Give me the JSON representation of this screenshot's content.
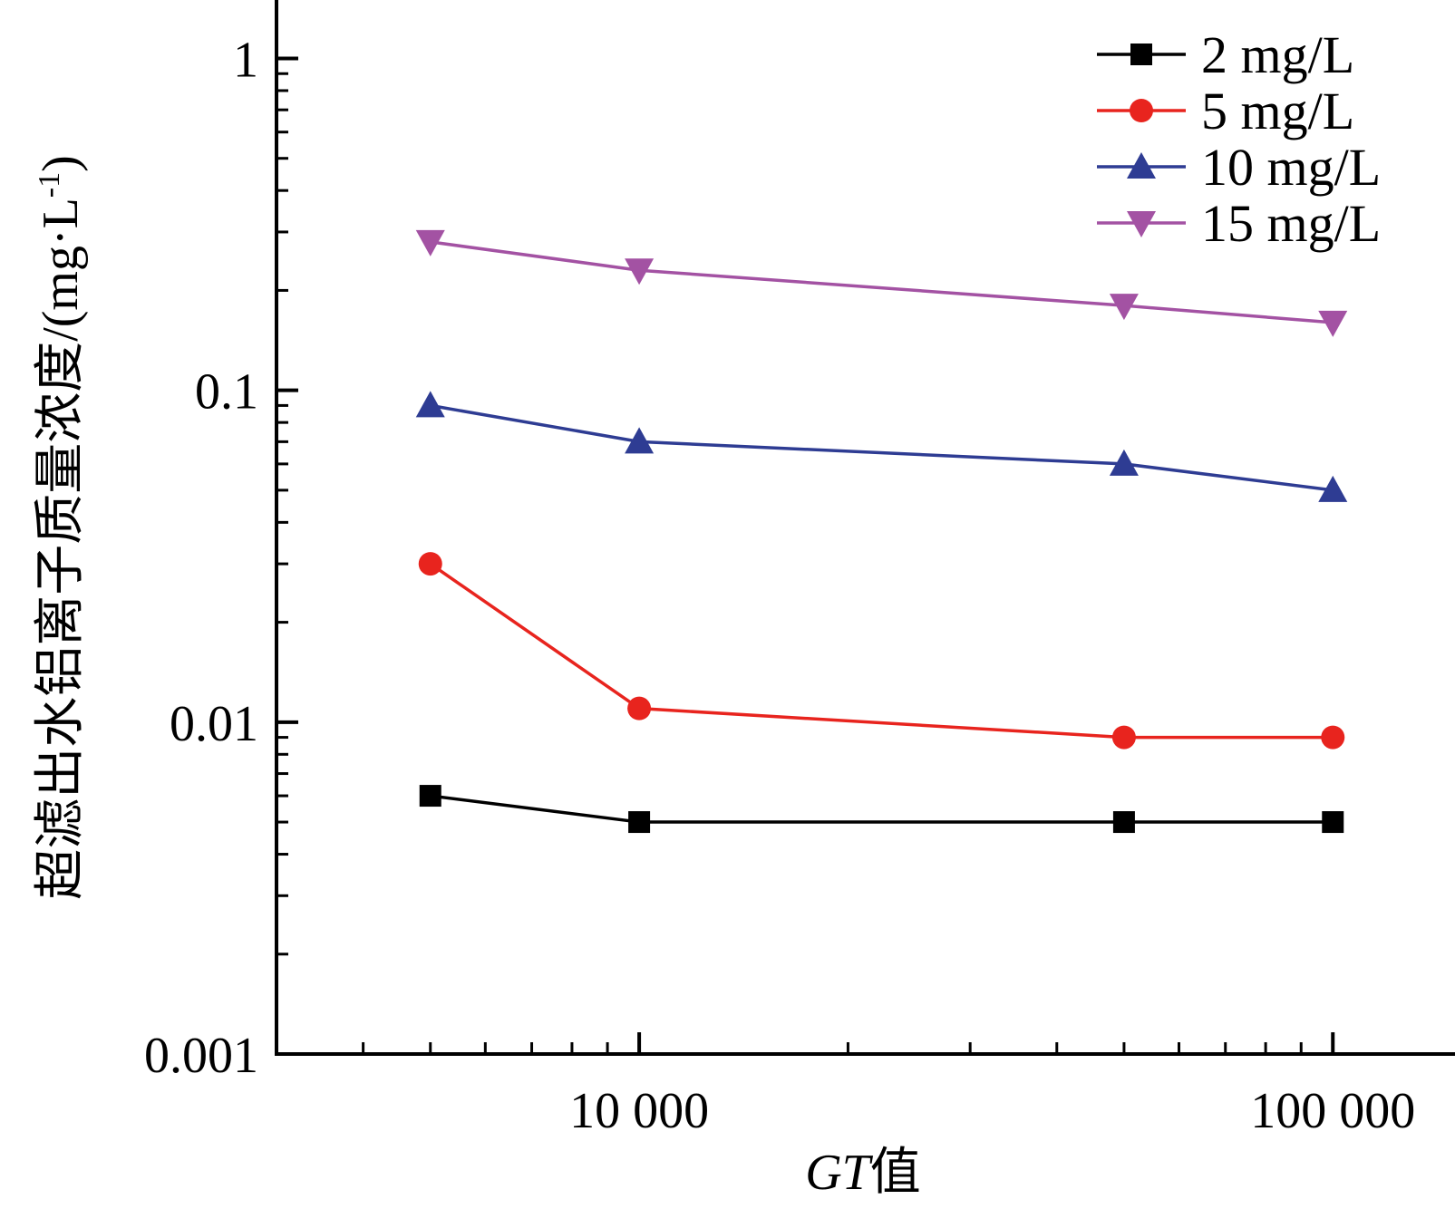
{
  "chart_data": {
    "type": "line",
    "x_scale": "log",
    "y_scale": "log",
    "xlim": [
      3000,
      150000
    ],
    "ylim": [
      0.001,
      1.5
    ],
    "x_major_ticks": [
      10000,
      100000
    ],
    "x_minor_ticks": [
      3000,
      4000,
      5000,
      6000,
      7000,
      8000,
      9000,
      20000,
      30000,
      40000,
      50000,
      60000,
      70000,
      80000,
      90000
    ],
    "y_major_ticks": [
      0.001,
      0.01,
      0.1,
      1
    ],
    "y_minor_ticks": [
      0.002,
      0.003,
      0.004,
      0.005,
      0.006,
      0.007,
      0.008,
      0.009,
      0.02,
      0.03,
      0.04,
      0.05,
      0.06,
      0.07,
      0.08,
      0.09,
      0.2,
      0.3,
      0.4,
      0.5,
      0.6,
      0.7,
      0.8,
      0.9
    ],
    "x_tick_labels": [
      "10 000",
      "100 000"
    ],
    "y_tick_labels": [
      "0.001",
      "0.01",
      "0.1",
      "1"
    ],
    "xlabel_italic": "GT",
    "xlabel_suffix": "值",
    "ylabel": "超滤出水铝离子质量浓度/(mg·L",
    "ylabel_sup": "-1",
    "ylabel_end": ")",
    "legend_position": "top-right",
    "x": [
      5000,
      10000,
      50000,
      100000
    ],
    "series": [
      {
        "name": "2 mg/L",
        "color": "#000000",
        "marker": "square",
        "values": [
          0.006,
          0.005,
          0.005,
          0.005
        ]
      },
      {
        "name": "5 mg/L",
        "color": "#e8241e",
        "marker": "circle",
        "values": [
          0.03,
          0.011,
          0.009,
          0.009
        ]
      },
      {
        "name": "10 mg/L",
        "color": "#2e3c93",
        "marker": "triangle-up",
        "values": [
          0.09,
          0.07,
          0.06,
          0.05
        ]
      },
      {
        "name": "15 mg/L",
        "color": "#a352a3",
        "marker": "triangle-down",
        "values": [
          0.28,
          0.23,
          0.18,
          0.16
        ]
      }
    ]
  }
}
